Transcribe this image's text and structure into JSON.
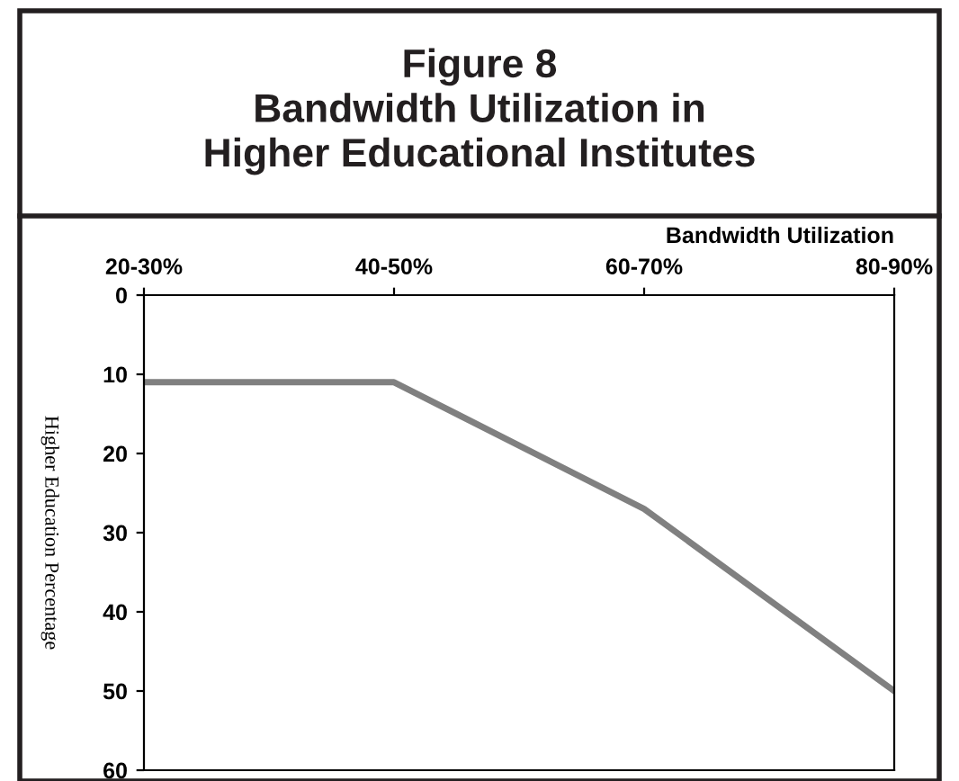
{
  "chart_data": {
    "type": "line",
    "title": "Figure 8\nBandwidth Utilization in\nHigher Educational Institutes",
    "xlabel": "Bandwidth Utilization",
    "ylabel": "Higher Education Percentage",
    "categories": [
      "20-30%",
      "40-50%",
      "60-70%",
      "80-90%"
    ],
    "series": [
      {
        "color": "#808080",
        "values": [
          11,
          11,
          27,
          50
        ]
      }
    ],
    "ylim": [
      60,
      0
    ],
    "yticks": [
      0,
      10,
      20,
      30,
      40,
      50,
      60
    ],
    "grid": false,
    "legend": false,
    "marker": "none",
    "line_style": "solid"
  }
}
